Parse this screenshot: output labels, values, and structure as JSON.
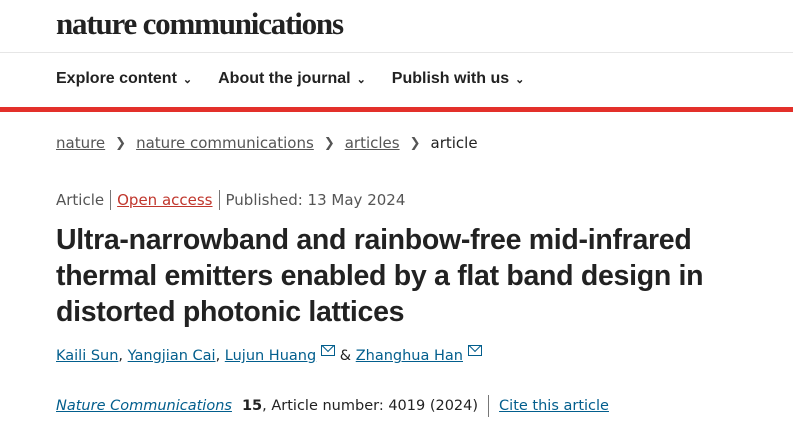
{
  "site": {
    "logo": "nature communications"
  },
  "nav": [
    {
      "label": "Explore content"
    },
    {
      "label": "About the journal"
    },
    {
      "label": "Publish with us"
    }
  ],
  "breadcrumb": [
    {
      "label": "nature"
    },
    {
      "label": "nature communications"
    },
    {
      "label": "articles"
    },
    {
      "label": "article"
    }
  ],
  "meta": {
    "type": "Article",
    "access": "Open access",
    "published": "Published: 13 May 2024"
  },
  "title": "Ultra-narrowband and rainbow-free mid-infrared thermal emitters enabled by a flat band design in distorted photonic lattices",
  "authors": [
    {
      "name": "Kaili Sun",
      "sep": ", "
    },
    {
      "name": "Yangjian Cai",
      "sep": ", "
    },
    {
      "name": "Lujun Huang",
      "sep": " & "
    },
    {
      "name": "Zhanghua Han",
      "sep": ""
    }
  ],
  "citation": {
    "journal": "Nature Communications",
    "volume": "15",
    "details": ", Article number: 4019 (2024)",
    "cite_label": "Cite this article"
  },
  "colors": {
    "accent_red": "#e3302a",
    "link": "#025e8d",
    "open_access": "#c0362c"
  }
}
